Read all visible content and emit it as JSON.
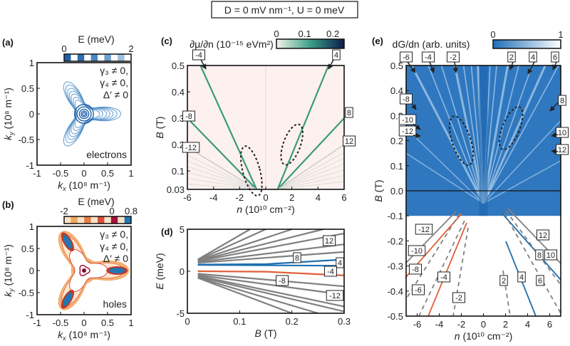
{
  "header": {
    "condition": "D = 0 mV nm⁻¹, U = 0 meV"
  },
  "chart_data": [
    {
      "panel": "(a)",
      "type": "heatmap",
      "xlim": [
        -1,
        1
      ],
      "ylim": [
        -1,
        1
      ],
      "xticks": [
        -1,
        -0.5,
        0,
        0.5,
        1
      ],
      "yticks": [
        1,
        0.5,
        0,
        -0.5,
        -1
      ],
      "xlabel": {
        "var": "k",
        "sub": "x",
        "unit": " (10⁸ m⁻¹)"
      },
      "ylabel": {
        "var": "k",
        "sub": "y",
        "unit": " (10⁸ m⁻¹)"
      },
      "colorbar": {
        "label": "E (meV)",
        "ticks": [
          0,
          2
        ],
        "colors": [
          "#1f5fa8",
          "#ffffff"
        ]
      },
      "annotations": [
        "γ₃ ≠ 0,",
        "γ₄ ≠ 0,",
        "Δ′ ≠ 0"
      ],
      "carrier": "electrons"
    },
    {
      "panel": "(b)",
      "type": "heatmap",
      "xlim": [
        -1,
        1
      ],
      "ylim": [
        -1,
        1
      ],
      "xticks": [
        -1,
        -0.5,
        0,
        0.5,
        1
      ],
      "yticks": [
        1,
        0.5,
        0,
        -0.5,
        -1
      ],
      "xlabel": {
        "var": "k",
        "sub": "x",
        "unit": " (10⁸ m⁻¹)"
      },
      "ylabel": {
        "var": "k",
        "sub": "y",
        "unit": " (10⁸ m⁻¹)"
      },
      "colorbar": {
        "label": "E (meV)",
        "ticks": [
          -2,
          0,
          0.8
        ],
        "colors": [
          "#f2a65a",
          "#e4572e",
          "#a4133c",
          "#1f77b4"
        ]
      },
      "annotations": [
        "γ₃ ≠ 0,",
        "γ₄ ≠ 0,",
        "Δ′ ≠ 0"
      ],
      "carrier": "holes"
    },
    {
      "panel": "(c)",
      "type": "heatmap",
      "xlim": [
        -6,
        6
      ],
      "ylim": [
        0.03,
        0.5
      ],
      "xticks": [
        -6,
        -4,
        -2,
        0,
        2,
        4,
        6
      ],
      "yticks": [
        0.5,
        0.4,
        0.3,
        0.2,
        0.1,
        0.03
      ],
      "xlabel": {
        "var": "n",
        "unit": " (10¹⁰ cm⁻²)"
      },
      "ylabel": {
        "var": "B",
        "unit": " (T)"
      },
      "colorbar": {
        "label": "∂μ/∂n (10⁻¹⁵ eVm²)",
        "ticks": [
          0,
          0.1,
          0.2
        ],
        "colors": [
          "#f7f3ea",
          "#3aa088",
          "#0d1a4a"
        ]
      },
      "lines": [
        {
          "label": "-4",
          "points": [
            [
              -0.7,
              0.03
            ],
            [
              -5.0,
              0.5
            ]
          ],
          "strong": true
        },
        {
          "label": "4",
          "points": [
            [
              0.9,
              0.03
            ],
            [
              4.8,
              0.5
            ]
          ],
          "strong": true
        },
        {
          "label": "-8",
          "points": [
            [
              -0.7,
              0.03
            ],
            [
              -6.0,
              0.3
            ]
          ],
          "strong": true
        },
        {
          "label": "8",
          "points": [
            [
              0.9,
              0.03
            ],
            [
              6.0,
              0.3
            ]
          ],
          "strong": true
        },
        {
          "label": "-12",
          "points": [
            [
              -0.7,
              0.03
            ],
            [
              -6.0,
              0.19
            ]
          ],
          "strong": false
        },
        {
          "label": "12",
          "points": [
            [
              0.9,
              0.03
            ],
            [
              6.0,
              0.2
            ]
          ],
          "strong": false
        }
      ]
    },
    {
      "panel": "(d)",
      "type": "line",
      "xlim": [
        0,
        0.3
      ],
      "ylim": [
        -5,
        5
      ],
      "xticks": [
        0,
        0.1,
        0.2,
        0.3
      ],
      "yticks": [
        5,
        0,
        -5
      ],
      "xlabel": {
        "var": "B",
        "unit": " (T)"
      },
      "ylabel": {
        "var": "E",
        "unit": " (meV)"
      },
      "series": [
        {
          "color": "#1f6fb0",
          "points": [
            [
              0.02,
              0.8
            ],
            [
              0.15,
              0.85
            ],
            [
              0.3,
              1.4
            ]
          ]
        },
        {
          "color": "#1f6fb0",
          "points": [
            [
              0.02,
              0.75
            ],
            [
              0.3,
              0.65
            ]
          ]
        },
        {
          "color": "#e0603a",
          "points": [
            [
              0.02,
              0.0
            ],
            [
              0.15,
              -0.05
            ],
            [
              0.3,
              -0.5
            ]
          ]
        },
        {
          "color": "#808080",
          "points": [
            [
              0.02,
              1.0
            ],
            [
              0.3,
              2.3
            ]
          ]
        },
        {
          "color": "#808080",
          "points": [
            [
              0.02,
              1.1
            ],
            [
              0.3,
              3.2
            ]
          ]
        },
        {
          "color": "#808080",
          "points": [
            [
              0.02,
              1.2
            ],
            [
              0.3,
              4.5
            ]
          ]
        },
        {
          "color": "#808080",
          "points": [
            [
              0.02,
              1.25
            ],
            [
              0.26,
              5
            ]
          ]
        },
        {
          "color": "#808080",
          "points": [
            [
              0.02,
              1.3
            ],
            [
              0.2,
              5
            ]
          ]
        },
        {
          "color": "#808080",
          "points": [
            [
              0.02,
              1.35
            ],
            [
              0.15,
              5
            ]
          ]
        },
        {
          "color": "#808080",
          "points": [
            [
              0.02,
              1.4
            ],
            [
              0.12,
              5
            ]
          ]
        },
        {
          "color": "#808080",
          "points": [
            [
              0.02,
              -0.3
            ],
            [
              0.3,
              -1.8
            ]
          ]
        },
        {
          "color": "#808080",
          "points": [
            [
              0.02,
              -0.45
            ],
            [
              0.3,
              -2.8
            ]
          ]
        },
        {
          "color": "#808080",
          "points": [
            [
              0.02,
              -0.55
            ],
            [
              0.3,
              -4.2
            ]
          ]
        },
        {
          "color": "#808080",
          "points": [
            [
              0.02,
              -0.65
            ],
            [
              0.3,
              -4.8
            ]
          ]
        },
        {
          "color": "#808080",
          "points": [
            [
              0.02,
              -0.75
            ],
            [
              0.25,
              -5
            ]
          ]
        },
        {
          "color": "#808080",
          "points": [
            [
              0.02,
              -0.8
            ],
            [
              0.2,
              -5
            ]
          ]
        }
      ],
      "labels": [
        "12",
        "8",
        "4",
        "-4",
        "-8",
        "-12"
      ]
    },
    {
      "panel": "(e)",
      "type": "heatmap",
      "xlim": [
        -7,
        7
      ],
      "ylim": [
        -0.5,
        0.5
      ],
      "xticks": [
        -6,
        -4,
        -2,
        0,
        2,
        4,
        6
      ],
      "yticks": [
        "0.5",
        "0.4",
        "0.3",
        "0.2",
        "0.1",
        "0.0",
        "-0.1",
        "-0.2",
        "-0.3",
        "-0.4",
        "-0.5"
      ],
      "xlabel": {
        "var": "n",
        "unit": " (10¹⁰ cm⁻²)"
      },
      "ylabel": {
        "var": "B",
        "unit": " (T)"
      },
      "colorbar": {
        "label": "dG/dn (arb. units)",
        "ticks": [
          0,
          1
        ],
        "colors": [
          "#1f6fb8",
          "#ffffff"
        ]
      },
      "top_labels": [
        "-6",
        "-4",
        "-2",
        "2",
        "4",
        "6"
      ],
      "left_labels": [
        "-8",
        "-10",
        "-12"
      ],
      "right_labels": [
        "8",
        "10",
        "12"
      ],
      "lower_labels": [
        "-12",
        "-10",
        "-8",
        "-6",
        "-4",
        "-2",
        "2",
        "4",
        "6",
        "8",
        "10",
        "12"
      ]
    }
  ]
}
